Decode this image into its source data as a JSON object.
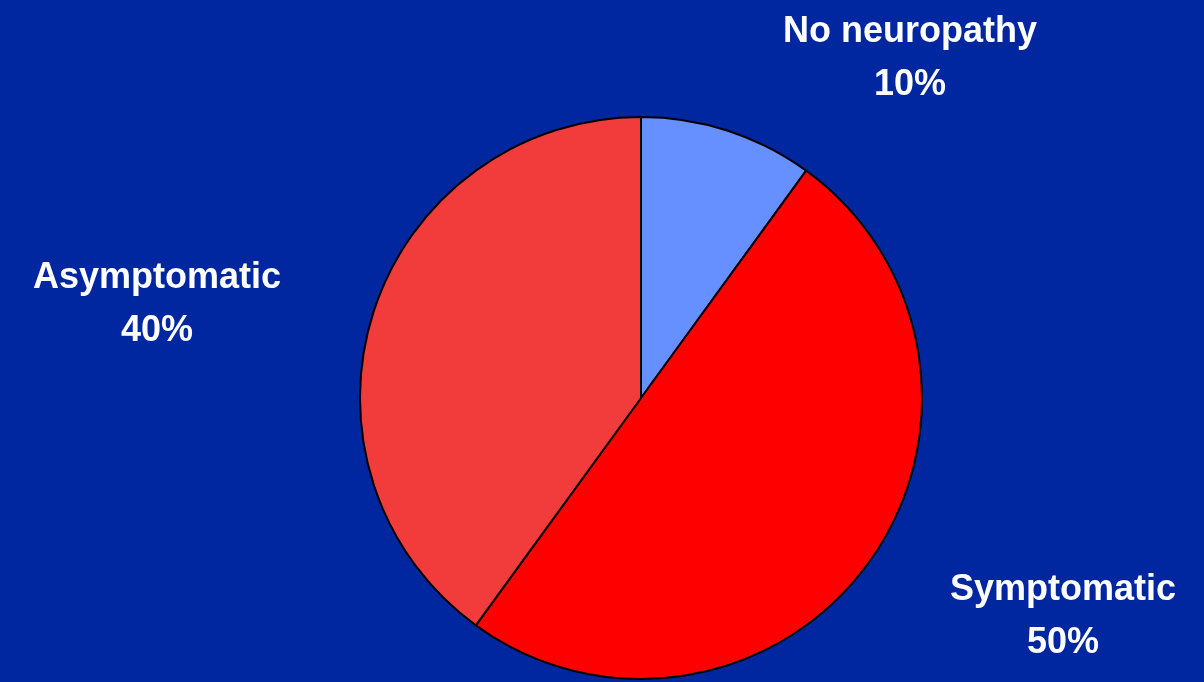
{
  "chart_data": {
    "type": "pie",
    "categories": [
      "No neuropathy",
      "Symptomatic",
      "Asymptomatic"
    ],
    "values": [
      10,
      50,
      40
    ],
    "colors": [
      "#6690ff",
      "#ff0000",
      "#f23c3c"
    ],
    "value_labels": [
      "10%",
      "50%",
      "40%"
    ],
    "legend": false
  }
}
